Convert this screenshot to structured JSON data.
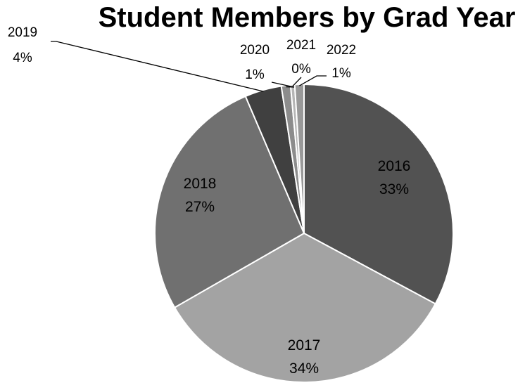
{
  "chart_data": {
    "type": "pie",
    "title": "Student Members by Grad Year",
    "categories": [
      "2016",
      "2017",
      "2018",
      "2019",
      "2020",
      "2021",
      "2022"
    ],
    "values": [
      33,
      34,
      27,
      4,
      1,
      0,
      1
    ],
    "percent_labels": [
      "33%",
      "34%",
      "27%",
      "4%",
      "1%",
      "0%",
      "1%"
    ],
    "colors": [
      "#525252",
      "#a3a3a3",
      "#707070",
      "#404040",
      "#8c8c8c",
      "#b5b5b5",
      "#999999"
    ],
    "start_angle_deg": 0,
    "direction": "clockwise",
    "legend": "none"
  }
}
